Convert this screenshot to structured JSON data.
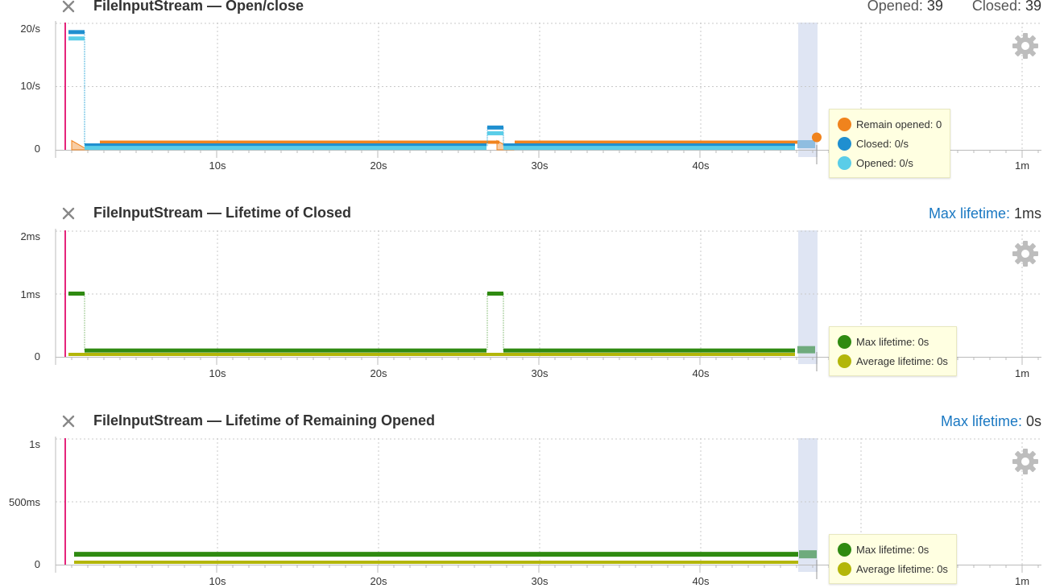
{
  "colors": {
    "orange": "#f0831d",
    "blue": "#1f8fd0",
    "cyan": "#5acde8",
    "green": "#2f8a11",
    "olive": "#b3b60a",
    "marker": "#e5247b",
    "highlight": "#dfe5f3"
  },
  "x_ticks": [
    "10s",
    "20s",
    "30s",
    "40s",
    "1m"
  ],
  "panels": [
    {
      "title": "FileInputStream — Open/close",
      "stats": {
        "opened_label": "Opened:",
        "opened_value": "39",
        "closed_label": "Closed:",
        "closed_value": "39"
      },
      "y_ticks": [
        "20/s",
        "10/s",
        "0"
      ],
      "legend": [
        {
          "label": "Remain opened: 0",
          "color": "#f0831d"
        },
        {
          "label": "Closed: 0/s",
          "color": "#1f8fd0"
        },
        {
          "label": "Opened: 0/s",
          "color": "#5acde8"
        }
      ]
    },
    {
      "title": "FileInputStream — Lifetime of Closed",
      "stats": {
        "label": "Max lifetime:",
        "value": "1ms"
      },
      "y_ticks": [
        "2ms",
        "1ms",
        "0"
      ],
      "legend": [
        {
          "label": "Max lifetime: 0s",
          "color": "#2f8a11"
        },
        {
          "label": "Average lifetime: 0s",
          "color": "#b3b60a"
        }
      ]
    },
    {
      "title": "FileInputStream — Lifetime of Remaining Opened",
      "stats": {
        "label": "Max lifetime:",
        "value": "0s"
      },
      "y_ticks": [
        "1s",
        "500ms",
        "0"
      ],
      "legend": [
        {
          "label": "Max lifetime: 0s",
          "color": "#2f8a11"
        },
        {
          "label": "Average lifetime: 0s",
          "color": "#b3b60a"
        }
      ]
    }
  ],
  "chart_data": [
    {
      "type": "line",
      "title": "FileInputStream — Open/close",
      "x_unit": "s",
      "xlim": [
        0,
        60
      ],
      "ylim": [
        0,
        20
      ],
      "series": [
        {
          "name": "Remain opened",
          "x": [
            1,
            3,
            28,
            29,
            46
          ],
          "values": [
            1.2,
            1.2,
            1.2,
            1.2,
            1.2
          ]
        },
        {
          "name": "Closed",
          "x": [
            1,
            2,
            27,
            28,
            46
          ],
          "values": [
            18.5,
            0.7,
            3.5,
            0.7,
            0.7
          ]
        },
        {
          "name": "Opened",
          "x": [
            1,
            2,
            27,
            28,
            46
          ],
          "values": [
            17.5,
            0.3,
            2.6,
            0.3,
            0.3
          ]
        }
      ]
    },
    {
      "type": "line",
      "title": "FileInputStream — Lifetime of Closed",
      "x_unit": "s",
      "xlim": [
        0,
        60
      ],
      "ylim": [
        0,
        2
      ],
      "series": [
        {
          "name": "Max lifetime",
          "x": [
            1,
            2,
            27,
            28,
            46
          ],
          "values": [
            1.0,
            0.1,
            1.0,
            0.1,
            0.1
          ]
        },
        {
          "name": "Average lifetime",
          "x": [
            1,
            46
          ],
          "values": [
            0.03,
            0.03
          ]
        }
      ]
    },
    {
      "type": "line",
      "title": "FileInputStream — Lifetime of Remaining Opened",
      "x_unit": "s",
      "xlim": [
        0,
        60
      ],
      "ylim": [
        0,
        1
      ],
      "series": [
        {
          "name": "Max lifetime",
          "x": [
            1,
            46
          ],
          "values": [
            0.05,
            0.05
          ]
        },
        {
          "name": "Average lifetime",
          "x": [
            1,
            46
          ],
          "values": [
            0.01,
            0.01
          ]
        }
      ]
    }
  ]
}
